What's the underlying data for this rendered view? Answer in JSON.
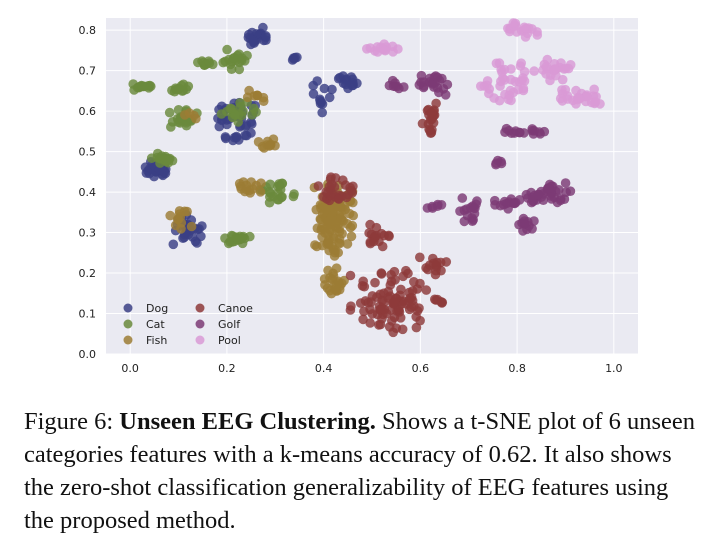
{
  "caption": {
    "prefix": "Figure 6: ",
    "title": "Unseen EEG Clustering.",
    "body": " Shows a t-SNE plot of 6 unseen categories features with a k-means accuracy of 0.62. It also shows the zero-shot classification generalizability of EEG features using the proposed method."
  },
  "chart_data": {
    "type": "scatter",
    "title": "",
    "xlabel": "",
    "ylabel": "",
    "xlim": [
      -0.05,
      1.05
    ],
    "ylim": [
      0.0,
      0.83
    ],
    "xticks": [
      "0.0",
      "0.2",
      "0.4",
      "0.6",
      "0.8",
      "1.0"
    ],
    "yticks": [
      "0.0",
      "0.1",
      "0.2",
      "0.3",
      "0.4",
      "0.5",
      "0.6",
      "0.7",
      "0.8"
    ],
    "grid": true,
    "legend_position": "bottom-left",
    "series": [
      {
        "name": "Dog",
        "color": "#3b3f85",
        "clusters": [
          {
            "x": [
              0.02,
              0.09
            ],
            "y": [
              0.43,
              0.48
            ],
            "n": 30
          },
          {
            "x": [
              0.08,
              0.16
            ],
            "y": [
              0.26,
              0.35
            ],
            "n": 30
          },
          {
            "x": [
              0.17,
              0.27
            ],
            "y": [
              0.52,
              0.64
            ],
            "n": 45
          },
          {
            "x": [
              0.24,
              0.29
            ],
            "y": [
              0.75,
              0.81
            ],
            "n": 22
          },
          {
            "x": [
              0.33,
              0.35
            ],
            "y": [
              0.72,
              0.74
            ],
            "n": 5
          },
          {
            "x": [
              0.36,
              0.43
            ],
            "y": [
              0.58,
              0.68
            ],
            "n": 12
          },
          {
            "x": [
              0.42,
              0.47
            ],
            "y": [
              0.65,
              0.69
            ],
            "n": 14
          }
        ]
      },
      {
        "name": "Cat",
        "color": "#6a8a3c",
        "clusters": [
          {
            "x": [
              0.0,
              0.05
            ],
            "y": [
              0.65,
              0.67
            ],
            "n": 14
          },
          {
            "x": [
              0.08,
              0.13
            ],
            "y": [
              0.64,
              0.67
            ],
            "n": 12
          },
          {
            "x": [
              0.13,
              0.18
            ],
            "y": [
              0.71,
              0.73
            ],
            "n": 10
          },
          {
            "x": [
              0.19,
              0.25
            ],
            "y": [
              0.7,
              0.76
            ],
            "n": 18
          },
          {
            "x": [
              0.08,
              0.14
            ],
            "y": [
              0.55,
              0.61
            ],
            "n": 22
          },
          {
            "x": [
              0.04,
              0.1
            ],
            "y": [
              0.46,
              0.5
            ],
            "n": 18
          },
          {
            "x": [
              0.19,
              0.25
            ],
            "y": [
              0.27,
              0.3
            ],
            "n": 20
          },
          {
            "x": [
              0.26,
              0.35
            ],
            "y": [
              0.37,
              0.43
            ],
            "n": 22
          },
          {
            "x": [
              0.18,
              0.27
            ],
            "y": [
              0.57,
              0.63
            ],
            "n": 18
          }
        ]
      },
      {
        "name": "Fish",
        "color": "#9c7c35",
        "clusters": [
          {
            "x": [
              0.37,
              0.47
            ],
            "y": [
              0.24,
              0.43
            ],
            "n": 110
          },
          {
            "x": [
              0.39,
              0.45
            ],
            "y": [
              0.14,
              0.22
            ],
            "n": 22
          },
          {
            "x": [
              0.08,
              0.13
            ],
            "y": [
              0.3,
              0.36
            ],
            "n": 12
          },
          {
            "x": [
              0.21,
              0.28
            ],
            "y": [
              0.39,
              0.43
            ],
            "n": 14
          },
          {
            "x": [
              0.26,
              0.31
            ],
            "y": [
              0.5,
              0.54
            ],
            "n": 10
          },
          {
            "x": [
              0.23,
              0.29
            ],
            "y": [
              0.62,
              0.66
            ],
            "n": 8
          },
          {
            "x": [
              0.1,
              0.14
            ],
            "y": [
              0.58,
              0.6
            ],
            "n": 4
          }
        ]
      },
      {
        "name": "Canoe",
        "color": "#8e3a3a",
        "clusters": [
          {
            "x": [
              0.45,
              0.62
            ],
            "y": [
              0.04,
              0.22
            ],
            "n": 90
          },
          {
            "x": [
              0.59,
              0.67
            ],
            "y": [
              0.19,
              0.24
            ],
            "n": 14
          },
          {
            "x": [
              0.62,
              0.66
            ],
            "y": [
              0.12,
              0.14
            ],
            "n": 6
          },
          {
            "x": [
              0.6,
              0.64
            ],
            "y": [
              0.52,
              0.63
            ],
            "n": 22
          },
          {
            "x": [
              0.38,
              0.47
            ],
            "y": [
              0.36,
              0.44
            ],
            "n": 28
          },
          {
            "x": [
              0.47,
              0.54
            ],
            "y": [
              0.24,
              0.34
            ],
            "n": 18
          }
        ]
      },
      {
        "name": "Golf",
        "color": "#7d3b75",
        "clusters": [
          {
            "x": [
              0.53,
              0.57
            ],
            "y": [
              0.64,
              0.68
            ],
            "n": 8
          },
          {
            "x": [
              0.58,
              0.66
            ],
            "y": [
              0.63,
              0.7
            ],
            "n": 22
          },
          {
            "x": [
              0.75,
              0.82
            ],
            "y": [
              0.35,
              0.4
            ],
            "n": 14
          },
          {
            "x": [
              0.8,
              0.92
            ],
            "y": [
              0.36,
              0.43
            ],
            "n": 38
          },
          {
            "x": [
              0.79,
              0.84
            ],
            "y": [
              0.3,
              0.35
            ],
            "n": 12
          },
          {
            "x": [
              0.68,
              0.73
            ],
            "y": [
              0.32,
              0.39
            ],
            "n": 16
          },
          {
            "x": [
              0.6,
              0.65
            ],
            "y": [
              0.35,
              0.38
            ],
            "n": 6
          },
          {
            "x": [
              0.75,
              0.78
            ],
            "y": [
              0.45,
              0.49
            ],
            "n": 5
          },
          {
            "x": [
              0.75,
              0.88
            ],
            "y": [
              0.54,
              0.56
            ],
            "n": 16
          }
        ]
      },
      {
        "name": "Pool",
        "color": "#d99ad6",
        "clusters": [
          {
            "x": [
              0.48,
              0.56
            ],
            "y": [
              0.74,
              0.77
            ],
            "n": 14
          },
          {
            "x": [
              0.77,
              0.85
            ],
            "y": [
              0.78,
              0.82
            ],
            "n": 20
          },
          {
            "x": [
              0.74,
              0.83
            ],
            "y": [
              0.61,
              0.73
            ],
            "n": 30
          },
          {
            "x": [
              0.83,
              0.93
            ],
            "y": [
              0.67,
              0.73
            ],
            "n": 22
          },
          {
            "x": [
              0.87,
              0.99
            ],
            "y": [
              0.6,
              0.66
            ],
            "n": 26
          },
          {
            "x": [
              0.72,
              0.76
            ],
            "y": [
              0.64,
              0.69
            ],
            "n": 6
          }
        ]
      }
    ]
  }
}
